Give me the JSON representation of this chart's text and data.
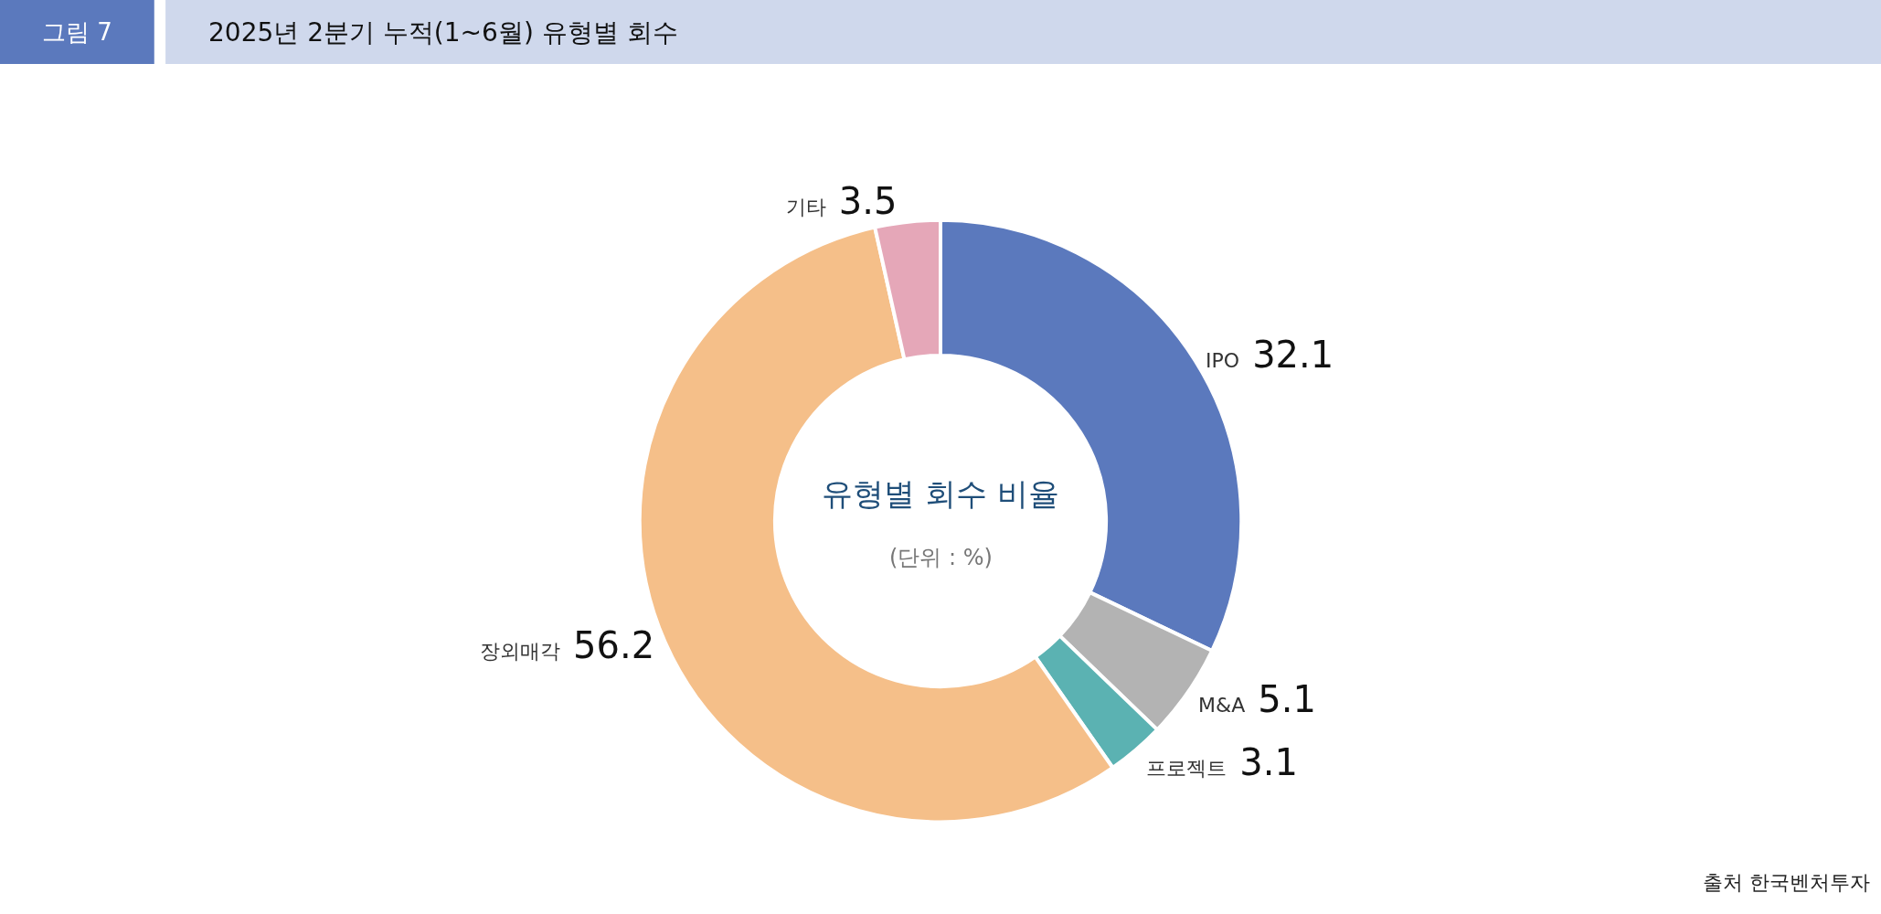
{
  "chart_data": {
    "type": "donut",
    "title": "2025년 2분기 누적(1~6월) 유형별 회수",
    "subtitle": "유형별 회수 비율",
    "categories": [
      "IPO",
      "M&A",
      "프로젝트",
      "장외매각",
      "기타"
    ],
    "values": [
      32.1,
      5.1,
      3.1,
      56.2,
      3.5
    ],
    "colors": [
      "#5b79bd",
      "#b3b3b3",
      "#5bb2b2",
      "#f5bf89",
      "#e5a7b8"
    ],
    "data_labels": true,
    "legend": false,
    "annotations": [
      "그림 7",
      "(단위 : %)",
      "출처 한국벤처투자"
    ]
  }
}
